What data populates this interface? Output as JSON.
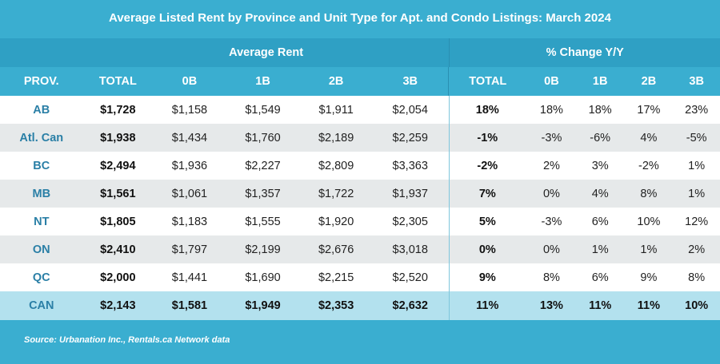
{
  "chart_data": {
    "type": "table",
    "title": "Average Listed Rent by Province and Unit Type for Apt. and Condo Listings: March 2024",
    "column_groups": [
      "Average Rent",
      "% Change Y/Y"
    ],
    "columns": [
      "PROV.",
      "TOTAL",
      "0B",
      "1B",
      "2B",
      "3B",
      "TOTAL",
      "0B",
      "1B",
      "2B",
      "3B"
    ],
    "rows": [
      {
        "prov": "AB",
        "rent": [
          "$1,728",
          "$1,158",
          "$1,549",
          "$1,911",
          "$2,054"
        ],
        "pct": [
          "18%",
          "18%",
          "18%",
          "17%",
          "23%"
        ]
      },
      {
        "prov": "Atl. Can",
        "rent": [
          "$1,938",
          "$1,434",
          "$1,760",
          "$2,189",
          "$2,259"
        ],
        "pct": [
          "-1%",
          "-3%",
          "-6%",
          "4%",
          "-5%"
        ]
      },
      {
        "prov": "BC",
        "rent": [
          "$2,494",
          "$1,936",
          "$2,227",
          "$2,809",
          "$3,363"
        ],
        "pct": [
          "-2%",
          "2%",
          "3%",
          "-2%",
          "1%"
        ]
      },
      {
        "prov": "MB",
        "rent": [
          "$1,561",
          "$1,061",
          "$1,357",
          "$1,722",
          "$1,937"
        ],
        "pct": [
          "7%",
          "0%",
          "4%",
          "8%",
          "1%"
        ]
      },
      {
        "prov": "NT",
        "rent": [
          "$1,805",
          "$1,183",
          "$1,555",
          "$1,920",
          "$2,305"
        ],
        "pct": [
          "5%",
          "-3%",
          "6%",
          "10%",
          "12%"
        ]
      },
      {
        "prov": "ON",
        "rent": [
          "$2,410",
          "$1,797",
          "$2,199",
          "$2,676",
          "$3,018"
        ],
        "pct": [
          "0%",
          "0%",
          "1%",
          "1%",
          "2%"
        ]
      },
      {
        "prov": "QC",
        "rent": [
          "$2,000",
          "$1,441",
          "$1,690",
          "$2,215",
          "$2,520"
        ],
        "pct": [
          "9%",
          "8%",
          "6%",
          "9%",
          "8%"
        ]
      },
      {
        "prov": "CAN",
        "rent": [
          "$2,143",
          "$1,581",
          "$1,949",
          "$2,353",
          "$2,632"
        ],
        "pct": [
          "11%",
          "13%",
          "11%",
          "11%",
          "10%"
        ]
      }
    ],
    "source": "Source: Urbanation Inc., Rentals.ca Network data"
  },
  "colors": {
    "background": "#3aaed0",
    "group_header": "#2fa0c4",
    "row_white": "#ffffff",
    "row_grey": "#e6e9ea",
    "total_row": "#b3e1ee",
    "province_text": "#2a7fa6"
  }
}
